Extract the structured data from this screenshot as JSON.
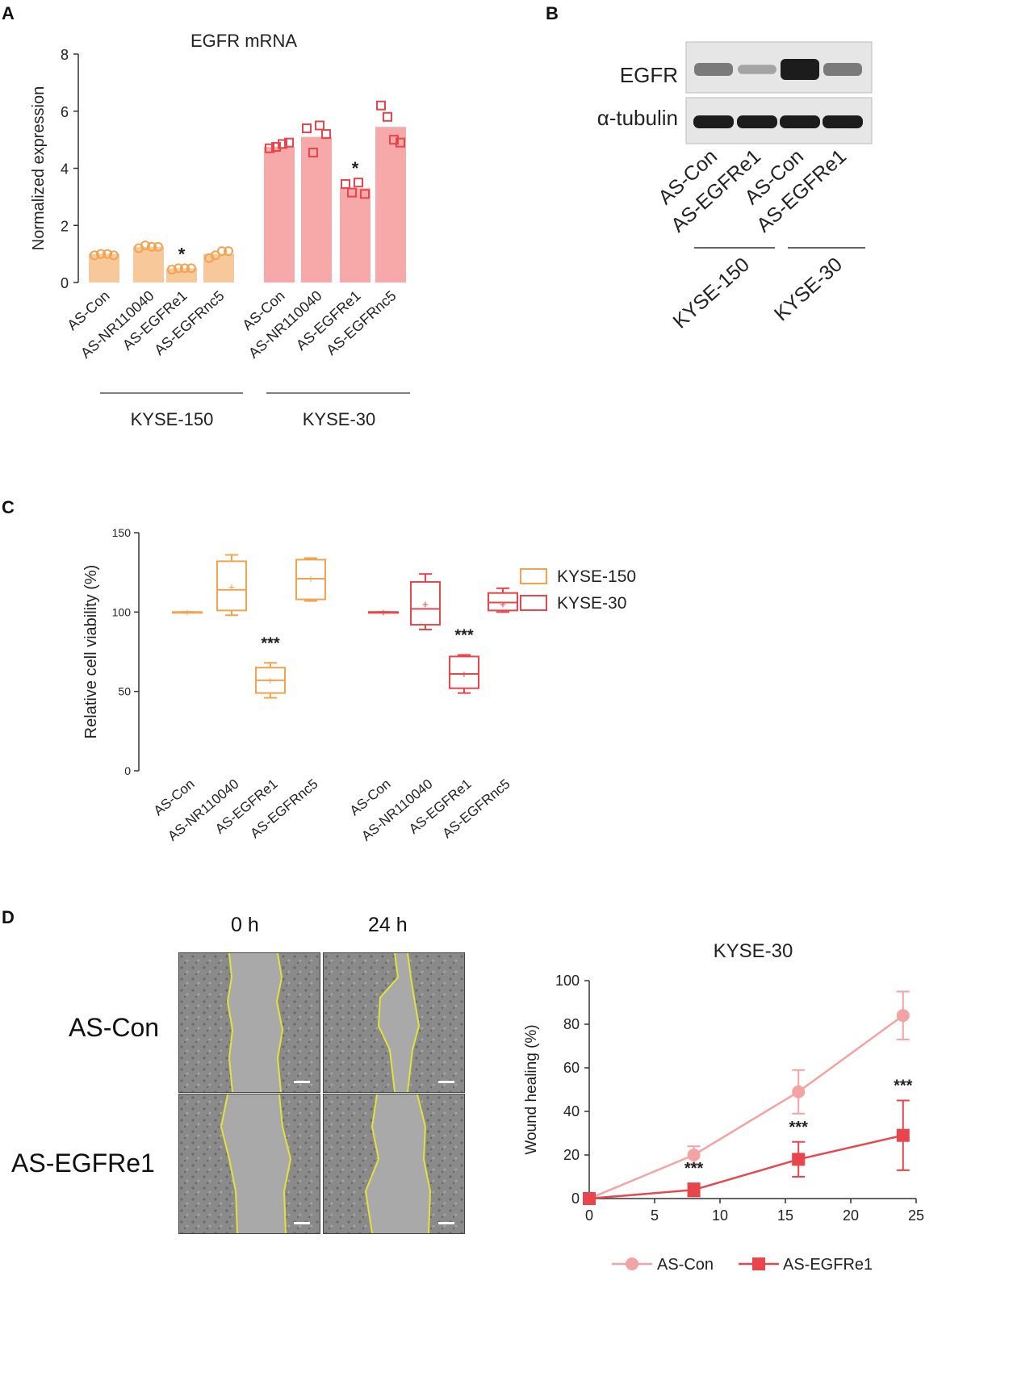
{
  "panels": {
    "a": "A",
    "b": "B",
    "c": "C",
    "d": "D"
  },
  "chart_data": [
    {
      "id": "A",
      "type": "bar",
      "title": "EGFR mRNA",
      "ylabel": "Normalized expression",
      "ylim": [
        0,
        8
      ],
      "yticks": [
        "0",
        "2",
        "4",
        "6",
        "8"
      ],
      "categories": [
        "AS-Con",
        "AS-NR110040",
        "AS-EGFRe1",
        "AS-EGFRnc5",
        "AS-Con",
        "AS-NR110040",
        "AS-EGFRe1",
        "AS-EGFRnc5"
      ],
      "groups": [
        "KYSE-150",
        "KYSE-30"
      ],
      "group_colors": [
        "#f7c99a",
        "#f7a8a8"
      ],
      "marker_colors": [
        "#f3a24f",
        "#e8454c"
      ],
      "values": [
        1.0,
        1.25,
        0.5,
        1.0,
        4.75,
        5.1,
        3.3,
        5.45
      ],
      "points": [
        [
          0.95,
          1.0,
          1.0,
          0.95
        ],
        [
          1.2,
          1.3,
          1.25,
          1.25
        ],
        [
          0.45,
          0.5,
          0.5,
          0.5
        ],
        [
          0.85,
          0.95,
          1.1,
          1.1
        ],
        [
          4.7,
          4.75,
          4.85,
          4.9
        ],
        [
          5.4,
          4.55,
          5.5,
          5.2
        ],
        [
          3.45,
          3.15,
          3.5,
          3.1
        ],
        [
          6.2,
          5.8,
          5.0,
          4.9
        ]
      ],
      "significance": [
        "",
        "",
        "*",
        "",
        "",
        "",
        "*",
        ""
      ]
    },
    {
      "id": "B",
      "type": "blot",
      "rows": [
        "EGFR",
        "α-tubulin"
      ],
      "lanes": [
        "AS-Con",
        "AS-EGFRe1",
        "AS-Con",
        "AS-EGFRe1"
      ],
      "groups": [
        "KYSE-150",
        "KYSE-30"
      ],
      "egfr_intensity": [
        0.45,
        0.2,
        1.0,
        0.45
      ],
      "tubulin_intensity": [
        0.95,
        0.95,
        0.95,
        0.95
      ]
    },
    {
      "id": "C",
      "type": "box",
      "ylabel": "Relative cell viability (%)",
      "ylim": [
        0,
        150
      ],
      "yticks": [
        "0",
        "50",
        "100",
        "150"
      ],
      "categories": [
        "AS-Con",
        "AS-NR110040",
        "AS-EGFRe1",
        "AS-EGFRnc5",
        "AS-Con",
        "AS-NR110040",
        "AS-EGFRe1",
        "AS-EGFRnc5"
      ],
      "legend": [
        "KYSE-150",
        "KYSE-30"
      ],
      "legend_position": "right",
      "colors": [
        "#f3a24f",
        "#e8454c"
      ],
      "boxes": [
        {
          "min": 100,
          "q1": 100,
          "median": 100,
          "q3": 100,
          "max": 100,
          "mean": 100
        },
        {
          "min": 98,
          "q1": 101,
          "median": 114,
          "q3": 132,
          "max": 136,
          "mean": 116
        },
        {
          "min": 46,
          "q1": 49,
          "median": 57,
          "q3": 65,
          "max": 68,
          "mean": 57
        },
        {
          "min": 107,
          "q1": 108,
          "median": 121,
          "q3": 133,
          "max": 134,
          "mean": 121
        },
        {
          "min": 100,
          "q1": 100,
          "median": 100,
          "q3": 100,
          "max": 100,
          "mean": 100
        },
        {
          "min": 89,
          "q1": 92,
          "median": 102,
          "q3": 119,
          "max": 124,
          "mean": 105
        },
        {
          "min": 49,
          "q1": 52,
          "median": 61,
          "q3": 72,
          "max": 73,
          "mean": 61
        },
        {
          "min": 100,
          "q1": 101,
          "median": 106,
          "q3": 112,
          "max": 115,
          "mean": 105
        }
      ],
      "significance": [
        "",
        "",
        "***",
        "",
        "",
        "",
        "***",
        ""
      ]
    },
    {
      "id": "D",
      "type": "line",
      "title": "KYSE-30",
      "xlabel": "",
      "ylabel": "Wound healing (%)",
      "xlim": [
        0,
        25
      ],
      "ylim": [
        0,
        100
      ],
      "xticks": [
        "0",
        "5",
        "10",
        "15",
        "20",
        "25"
      ],
      "yticks": [
        "0",
        "20",
        "40",
        "60",
        "80",
        "100"
      ],
      "legend_position": "bottom",
      "series": [
        {
          "name": "AS-Con",
          "color": "#f4a3a3",
          "marker": "circle",
          "x": [
            0,
            8,
            16,
            24
          ],
          "y": [
            0,
            20,
            49,
            84
          ],
          "err": [
            0,
            4,
            10,
            11
          ],
          "significance": [
            "",
            "",
            "",
            ""
          ]
        },
        {
          "name": "AS-EGFRe1",
          "color": "#e8454c",
          "marker": "square",
          "x": [
            0,
            8,
            16,
            24
          ],
          "y": [
            0,
            4,
            18,
            29
          ],
          "err": [
            0,
            3,
            8,
            16
          ],
          "significance": [
            "",
            "***",
            "***",
            "***"
          ]
        }
      ]
    }
  ],
  "scratch": {
    "time_labels": [
      "0 h",
      "24 h"
    ],
    "conditions": [
      "AS-Con",
      "AS-EGFRe1"
    ]
  }
}
